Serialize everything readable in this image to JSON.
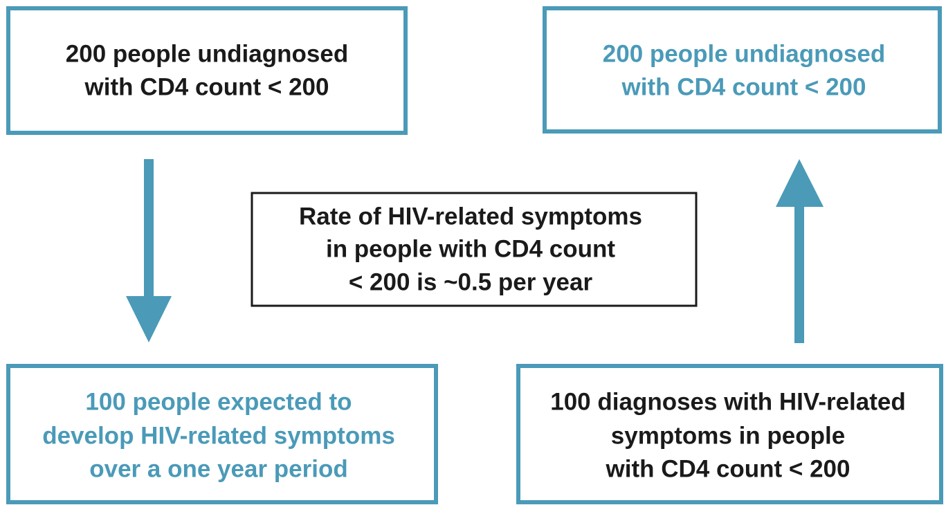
{
  "nodes": [
    {
      "lines": [
        "200 people undiagnosed",
        "with CD4 count < 200"
      ]
    },
    {
      "lines": [
        "200 people undiagnosed",
        "with CD4 count < 200"
      ]
    },
    {
      "lines": [
        "Rate of HIV-related symptoms",
        "in people with CD4 count",
        "< 200 is ~0.5 per year"
      ]
    },
    {
      "lines": [
        "100 people expected to",
        "develop HIV-related symptoms",
        "over a one year period"
      ]
    },
    {
      "lines": [
        "100 diagnoses with HIV-related",
        "symptoms in people",
        "with CD4 count < 200"
      ]
    }
  ]
}
